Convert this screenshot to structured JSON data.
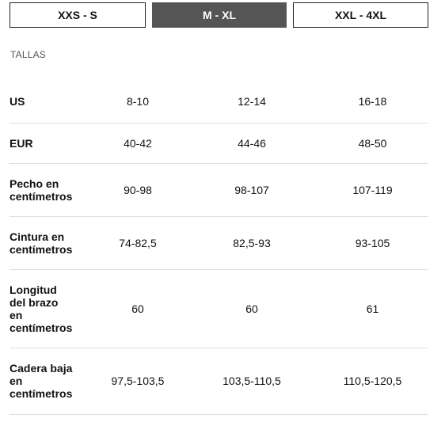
{
  "tabs": [
    {
      "label": "XXS - S",
      "active": false
    },
    {
      "label": "M - XL",
      "active": true
    },
    {
      "label": "XXL - 4XL",
      "active": false
    }
  ],
  "section_title": "TALLAS",
  "table": {
    "rows": [
      {
        "label": "US",
        "values": [
          "8-10",
          "12-14",
          "16-18"
        ]
      },
      {
        "label": "EUR",
        "values": [
          "40-42",
          "44-46",
          "48-50"
        ]
      },
      {
        "label": "Pecho en centímetros",
        "values": [
          "90-98",
          "98-107",
          "107-119"
        ]
      },
      {
        "label": "Cintura en centímetros",
        "values": [
          "74-82,5",
          "82,5-93",
          "93-105"
        ]
      },
      {
        "label": "Longitud del brazo en centímetros",
        "values": [
          "60",
          "60",
          "61"
        ]
      },
      {
        "label": "Cadera baja en centímetros",
        "values": [
          "97,5-103,5",
          "103,5-110,5",
          "110,5-120,5"
        ]
      }
    ]
  },
  "colors": {
    "active_tab": "#555555",
    "border": "#222222",
    "divider": "#dddddd"
  }
}
